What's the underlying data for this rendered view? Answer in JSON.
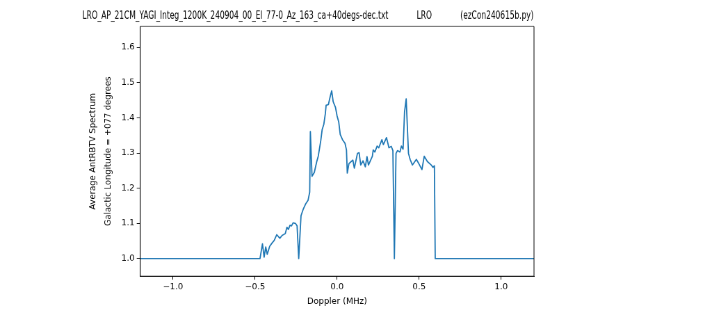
{
  "chart_data": {
    "type": "line",
    "title": "LRO_AP_21CM_YAGI_Integ_1200K_240904_00_El_77-0_Az_163_ca+40degs-dec.txt            LRO            (ezCon240615b.py)",
    "xlabel": "Doppler (MHz)",
    "ylabel": "Average AntRBTV Spectrum\nGalactic Longitude = +077 degrees",
    "xlim": [
      -1.2,
      1.2
    ],
    "ylim": [
      0.95,
      1.66
    ],
    "xticks": [
      {
        "value": -1.0,
        "label": "−1.0"
      },
      {
        "value": -0.5,
        "label": "−0.5"
      },
      {
        "value": 0,
        "label": "0.0"
      },
      {
        "value": 0.5,
        "label": "0.5"
      },
      {
        "value": 1.0,
        "label": "1.0"
      }
    ],
    "yticks": [
      {
        "value": 1.0,
        "label": "1.0"
      },
      {
        "value": 1.1,
        "label": "1.1"
      },
      {
        "value": 1.2,
        "label": "1.2"
      },
      {
        "value": 1.3,
        "label": "1.3"
      },
      {
        "value": 1.4,
        "label": "1.4"
      },
      {
        "value": 1.5,
        "label": "1.5"
      },
      {
        "value": 1.6,
        "label": "1.6"
      }
    ],
    "grid": false,
    "legend": false,
    "marker": "none",
    "line_style": "solid",
    "series": [
      {
        "color": "#1f77b4",
        "x": [
          -1.2,
          -0.49,
          -0.47,
          -0.455,
          -0.445,
          -0.435,
          -0.426,
          -0.411,
          -0.397,
          -0.383,
          -0.368,
          -0.349,
          -0.335,
          -0.316,
          -0.306,
          -0.297,
          -0.287,
          -0.278,
          -0.268,
          -0.254,
          -0.244,
          -0.234,
          -0.22,
          -0.206,
          -0.191,
          -0.177,
          -0.167,
          -0.163,
          -0.153,
          -0.139,
          -0.124,
          -0.115,
          -0.1,
          -0.091,
          -0.081,
          -0.072,
          -0.067,
          -0.053,
          -0.043,
          -0.033,
          -0.024,
          -0.01,
          0,
          0.01,
          0.019,
          0.033,
          0.048,
          0.057,
          0.062,
          0.072,
          0.086,
          0.096,
          0.105,
          0.124,
          0.134,
          0.144,
          0.158,
          0.172,
          0.182,
          0.191,
          0.215,
          0.22,
          0.23,
          0.244,
          0.254,
          0.273,
          0.282,
          0.301,
          0.316,
          0.33,
          0.34,
          0.349,
          0.359,
          0.368,
          0.383,
          0.392,
          0.402,
          0.411,
          0.421,
          0.435,
          0.445,
          0.459,
          0.483,
          0.498,
          0.517,
          0.531,
          0.55,
          0.574,
          0.584,
          0.593,
          0.598,
          1.2
        ],
        "values": [
          1.0,
          1.0,
          1.0,
          1.042,
          1.004,
          1.033,
          1.012,
          1.035,
          1.044,
          1.052,
          1.068,
          1.058,
          1.066,
          1.071,
          1.089,
          1.083,
          1.095,
          1.093,
          1.102,
          1.1,
          1.093,
          1.0,
          1.122,
          1.141,
          1.156,
          1.166,
          1.189,
          1.361,
          1.234,
          1.245,
          1.276,
          1.291,
          1.334,
          1.367,
          1.382,
          1.411,
          1.436,
          1.438,
          1.459,
          1.477,
          1.446,
          1.43,
          1.405,
          1.388,
          1.353,
          1.338,
          1.328,
          1.309,
          1.243,
          1.27,
          1.276,
          1.28,
          1.257,
          1.299,
          1.301,
          1.266,
          1.278,
          1.261,
          1.29,
          1.266,
          1.291,
          1.309,
          1.303,
          1.32,
          1.315,
          1.338,
          1.324,
          1.344,
          1.315,
          1.319,
          1.307,
          1.0,
          1.299,
          1.307,
          1.303,
          1.32,
          1.311,
          1.417,
          1.454,
          1.299,
          1.282,
          1.266,
          1.282,
          1.27,
          1.253,
          1.291,
          1.276,
          1.266,
          1.259,
          1.264,
          1.0,
          1.0
        ]
      }
    ]
  }
}
